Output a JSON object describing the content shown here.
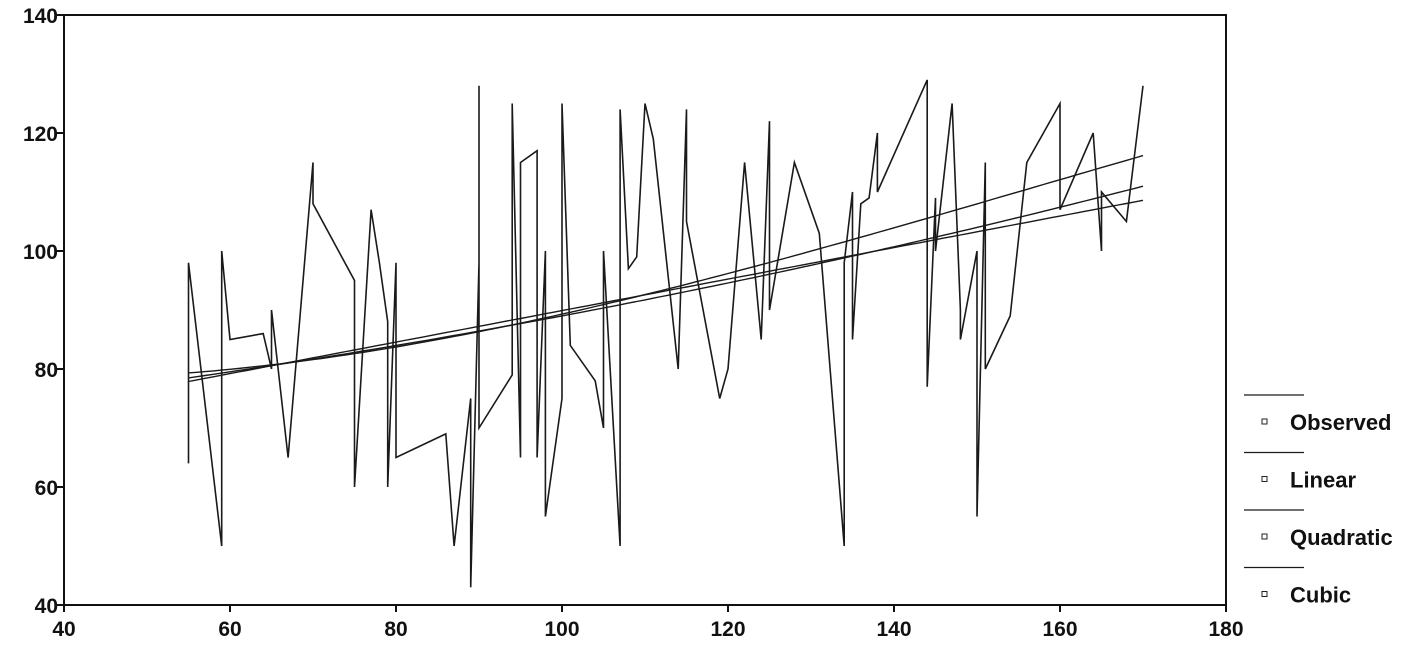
{
  "chart_data": {
    "type": "line",
    "title": "",
    "xlabel": "",
    "ylabel": "",
    "xlim": [
      40,
      180
    ],
    "ylim": [
      40,
      140
    ],
    "x_ticks": [
      40,
      60,
      80,
      100,
      120,
      140,
      160,
      180
    ],
    "y_ticks": [
      40,
      60,
      80,
      100,
      120,
      140
    ],
    "x_tick_labels": [
      "40",
      "60",
      "80",
      "100",
      "120",
      "140",
      "160",
      "180"
    ],
    "y_tick_labels": [
      "40",
      "60",
      "80",
      "100",
      "120",
      "140"
    ],
    "grid": false,
    "legend_position": "bottom-right",
    "line_color": "#1a1a1a",
    "series": [
      {
        "name": "Observed",
        "x": [
          55,
          55,
          59,
          59,
          60,
          64,
          65,
          65,
          67,
          70,
          70,
          75,
          75,
          77,
          78,
          79,
          79,
          80,
          80,
          86,
          87,
          89,
          89,
          90,
          90,
          90,
          94,
          94,
          95,
          95,
          97,
          97,
          98,
          98,
          100,
          100,
          101,
          104,
          105,
          105,
          107,
          107,
          108,
          109,
          110,
          111,
          114,
          115,
          115,
          119,
          120,
          122,
          124,
          125,
          125,
          128,
          131,
          134,
          134,
          135,
          135,
          136,
          137,
          138,
          138,
          144,
          144,
          145,
          145,
          147,
          148,
          148,
          150,
          150,
          151,
          151,
          154,
          156,
          158,
          160,
          160,
          164,
          165,
          165,
          168,
          170
        ],
        "y": [
          64,
          98,
          50,
          100,
          85,
          86,
          80,
          90,
          65,
          115,
          108,
          95,
          60,
          107,
          98,
          88,
          60,
          98,
          65,
          69,
          50,
          75,
          43,
          98,
          128,
          70,
          79,
          125,
          65,
          115,
          117,
          65,
          100,
          55,
          75,
          125,
          84,
          78,
          70,
          100,
          50,
          124,
          97,
          99,
          125,
          119,
          80,
          124,
          105,
          75,
          80,
          115,
          85,
          122,
          90,
          115,
          103,
          50,
          98,
          110,
          85,
          108,
          109,
          120,
          110,
          129,
          77,
          109,
          100,
          125,
          90,
          85,
          100,
          55,
          115,
          80,
          89,
          115,
          120,
          125,
          107,
          120,
          100,
          110,
          105,
          128
        ]
      },
      {
        "name": "Linear",
        "a": 63.2,
        "b": 0.267
      },
      {
        "name": "Quadratic",
        "c": [
          69.5,
          0.125,
          0.0007
        ]
      },
      {
        "name": "Cubic",
        "c": [
          83.8,
          -0.3,
          0.0045,
          -9.5e-06
        ]
      }
    ],
    "legend": [
      "Observed",
      "Linear",
      "Quadratic",
      "Cubic"
    ]
  }
}
